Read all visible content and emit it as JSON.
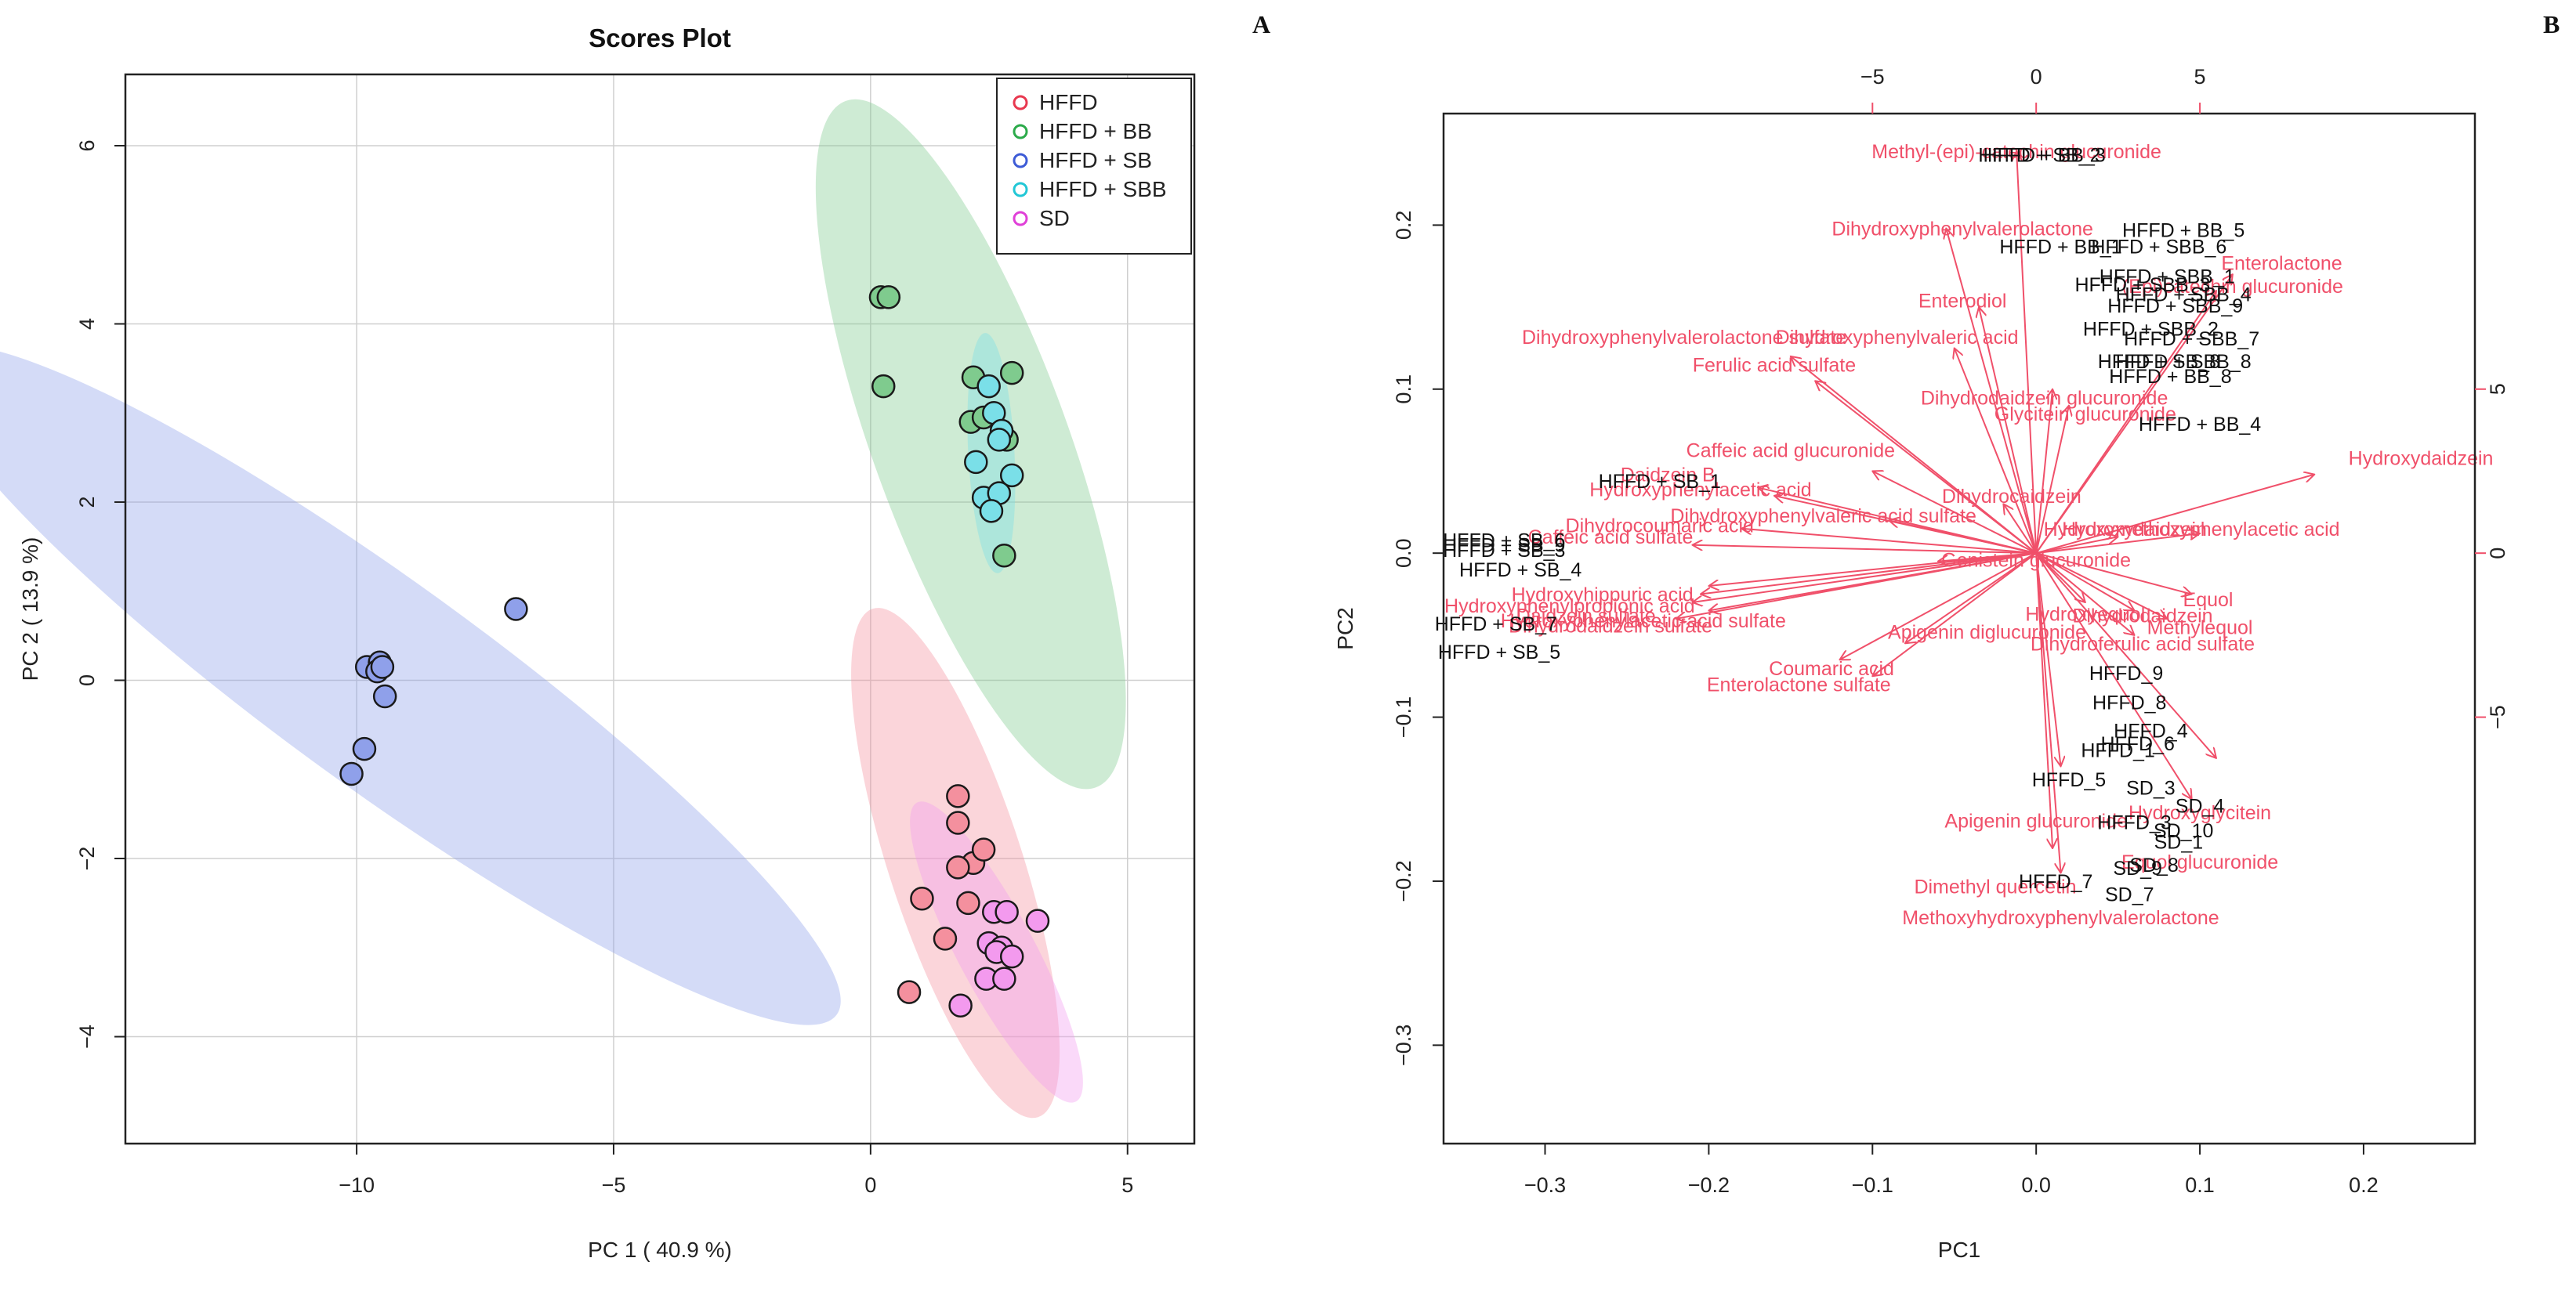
{
  "chart_data": [
    {
      "panel": "A",
      "type": "scatter",
      "title": "Scores Plot",
      "xlabel": "PC 1 ( 40.9 %)",
      "ylabel": "PC 2 ( 13.9 %)",
      "xlim": [
        -14.5,
        6.3
      ],
      "ylim": [
        -5.2,
        6.8
      ],
      "xticks": [
        -10,
        -5,
        0,
        5
      ],
      "yticks": [
        -4,
        -2,
        0,
        2,
        4,
        6
      ],
      "grid": true,
      "legend_position": "top-right",
      "series": [
        {
          "name": "HFFD",
          "color": "#E8384F",
          "fill": "#F4909E",
          "ellipse": {
            "cx": 1.65,
            "cy": -2.05,
            "rx": 1.3,
            "ry": 3.0,
            "angle_deg": 18
          },
          "points": [
            [
              1.7,
              -1.3
            ],
            [
              1.7,
              -1.6
            ],
            [
              2.0,
              -2.05
            ],
            [
              2.2,
              -1.9
            ],
            [
              1.7,
              -2.1
            ],
            [
              1.0,
              -2.45
            ],
            [
              1.9,
              -2.5
            ],
            [
              1.45,
              -2.9
            ],
            [
              0.75,
              -3.5
            ]
          ]
        },
        {
          "name": "HFFD + BB",
          "color": "#2BAA4A",
          "fill": "#7FCB8E",
          "ellipse": {
            "cx": 1.95,
            "cy": 2.65,
            "rx": 1.9,
            "ry": 4.1,
            "angle_deg": 20
          },
          "points": [
            [
              0.2,
              4.3
            ],
            [
              0.35,
              4.3
            ],
            [
              0.25,
              3.3
            ],
            [
              2.0,
              3.4
            ],
            [
              2.75,
              3.45
            ],
            [
              1.95,
              2.9
            ],
            [
              2.2,
              2.95
            ],
            [
              2.65,
              2.7
            ],
            [
              2.6,
              1.4
            ]
          ]
        },
        {
          "name": "HFFD + SB",
          "color": "#3D5BD6",
          "fill": "#8FA0EA",
          "ellipse": {
            "cx": -9.5,
            "cy": -0.05,
            "rx": 2.0,
            "ry": 6.3,
            "angle_deg": 54
          },
          "points": [
            [
              -6.9,
              0.8
            ],
            [
              -9.8,
              0.15
            ],
            [
              -9.55,
              0.2
            ],
            [
              -9.6,
              0.1
            ],
            [
              -9.5,
              0.15
            ],
            [
              -9.45,
              -0.18
            ],
            [
              -9.85,
              -0.77
            ],
            [
              -10.1,
              -1.05
            ]
          ]
        },
        {
          "name": "HFFD + SBB",
          "color": "#22C7D6",
          "fill": "#7ADFE8",
          "ellipse": {
            "cx": 2.35,
            "cy": 2.55,
            "rx": 0.45,
            "ry": 1.35,
            "angle_deg": 3
          },
          "points": [
            [
              2.3,
              3.3
            ],
            [
              2.4,
              3.0
            ],
            [
              2.55,
              2.8
            ],
            [
              2.5,
              2.7
            ],
            [
              2.05,
              2.45
            ],
            [
              2.75,
              2.3
            ],
            [
              2.2,
              2.05
            ],
            [
              2.5,
              2.1
            ],
            [
              2.35,
              1.9
            ]
          ]
        },
        {
          "name": "SD",
          "color": "#E040D8",
          "fill": "#F39AEE",
          "ellipse": {
            "cx": 2.45,
            "cy": -3.05,
            "rx": 0.75,
            "ry": 1.9,
            "angle_deg": 28
          },
          "points": [
            [
              2.4,
              -2.6
            ],
            [
              2.65,
              -2.6
            ],
            [
              3.25,
              -2.7
            ],
            [
              2.3,
              -2.95
            ],
            [
              2.55,
              -3.0
            ],
            [
              2.45,
              -3.05
            ],
            [
              2.75,
              -3.1
            ],
            [
              2.25,
              -3.35
            ],
            [
              2.6,
              -3.35
            ],
            [
              1.75,
              -3.65
            ]
          ]
        }
      ]
    },
    {
      "panel": "B",
      "type": "scatter",
      "title": "",
      "xlabel": "PC1",
      "ylabel": "PC2",
      "xlim": [
        -0.362,
        0.268
      ],
      "ylim": [
        -0.36,
        0.268
      ],
      "xticks": [
        -0.3,
        -0.2,
        -0.1,
        0.0,
        0.1,
        0.2
      ],
      "yticks": [
        -0.3,
        -0.2,
        -0.1,
        0.0,
        0.1,
        0.2
      ],
      "top_ticks": [
        -5,
        0,
        5
      ],
      "top_scale": 0.02,
      "right_ticks": [
        5,
        0,
        -5
      ],
      "grid": false,
      "arrow_color": "#F0506A",
      "sample_label_color": "#111111",
      "samples": [
        {
          "label": "HFFD + BB_3",
          "x": 0.005,
          "y": 0.243
        },
        {
          "label": "HFFD + SB_2",
          "x": 0.002,
          "y": 0.243
        },
        {
          "label": "HFFD + BB_5",
          "x": 0.09,
          "y": 0.197
        },
        {
          "label": "HFFD + BB_1",
          "x": 0.015,
          "y": 0.187
        },
        {
          "label": "HFFD + SBB_6",
          "x": 0.075,
          "y": 0.187
        },
        {
          "label": "HFFD + SBB_1",
          "x": 0.08,
          "y": 0.169
        },
        {
          "label": "HFFD + SBB_3",
          "x": 0.065,
          "y": 0.164
        },
        {
          "label": "HFFD + SBB_4",
          "x": 0.09,
          "y": 0.158
        },
        {
          "label": "HFFD + SBB_9",
          "x": 0.085,
          "y": 0.151
        },
        {
          "label": "HFFD + SBB_2",
          "x": 0.07,
          "y": 0.137
        },
        {
          "label": "HFFD + SBB_7",
          "x": 0.095,
          "y": 0.131
        },
        {
          "label": "HFFD + SBB_8",
          "x": 0.09,
          "y": 0.117
        },
        {
          "label": "HFFD + SB_8",
          "x": 0.075,
          "y": 0.117
        },
        {
          "label": "HFFD + BB_8",
          "x": 0.082,
          "y": 0.108
        },
        {
          "label": "HFFD + BB_4",
          "x": 0.1,
          "y": 0.079
        },
        {
          "label": "HFFD + SB_1",
          "x": -0.23,
          "y": 0.044
        },
        {
          "label": "HFFD + SB_6",
          "x": -0.325,
          "y": 0.008
        },
        {
          "label": "HFFD + SB_9",
          "x": -0.325,
          "y": 0.005
        },
        {
          "label": "HFFD + SB_3",
          "x": -0.325,
          "y": 0.002
        },
        {
          "label": "HFFD + SB_4",
          "x": -0.315,
          "y": -0.01
        },
        {
          "label": "HFFD + SB_7",
          "x": -0.33,
          "y": -0.043
        },
        {
          "label": "HFFD + SB_5",
          "x": -0.328,
          "y": -0.06
        },
        {
          "label": "HFFD_9",
          "x": 0.055,
          "y": -0.073
        },
        {
          "label": "HFFD_8",
          "x": 0.057,
          "y": -0.091
        },
        {
          "label": "HFFD_4",
          "x": 0.07,
          "y": -0.108
        },
        {
          "label": "HFFD_1",
          "x": 0.05,
          "y": -0.12
        },
        {
          "label": "HFFD_6",
          "x": 0.062,
          "y": -0.116
        },
        {
          "label": "HFFD_5",
          "x": 0.02,
          "y": -0.138
        },
        {
          "label": "SD_3",
          "x": 0.07,
          "y": -0.143
        },
        {
          "label": "SD_4",
          "x": 0.1,
          "y": -0.154
        },
        {
          "label": "HFFD_3",
          "x": 0.06,
          "y": -0.164
        },
        {
          "label": "SD_10",
          "x": 0.09,
          "y": -0.169
        },
        {
          "label": "SD_1",
          "x": 0.087,
          "y": -0.176
        },
        {
          "label": "SD_9",
          "x": 0.062,
          "y": -0.192
        },
        {
          "label": "SD_8",
          "x": 0.072,
          "y": -0.19
        },
        {
          "label": "HFFD_7",
          "x": 0.012,
          "y": -0.2
        },
        {
          "label": "SD_7",
          "x": 0.057,
          "y": -0.208
        }
      ],
      "loadings": [
        {
          "label": "Methyl-(epi)-catechin glucuronide",
          "x": -0.012,
          "y": 0.245,
          "ax": -0.012,
          "ay": 0.245
        },
        {
          "label": "Dihydroxyphenylvalerolactone",
          "x": -0.045,
          "y": 0.198,
          "ax": -0.055,
          "ay": 0.198
        },
        {
          "label": "Enterolactone",
          "x": 0.15,
          "y": 0.177,
          "ax": 0.12,
          "ay": 0.17
        },
        {
          "label": "(Epi)catechin glucuronide",
          "x": 0.12,
          "y": 0.163,
          "ax": 0.11,
          "ay": 0.16
        },
        {
          "label": "Enterodiol",
          "x": -0.045,
          "y": 0.154,
          "ax": -0.035,
          "ay": 0.15
        },
        {
          "label": "Dihydroxyphenylvalerolactone sulfate",
          "x": -0.215,
          "y": 0.132,
          "ax": -0.15,
          "ay": 0.12
        },
        {
          "label": "Dihydroxyphenylvaleric acid",
          "x": -0.085,
          "y": 0.132,
          "ax": -0.05,
          "ay": 0.125
        },
        {
          "label": "Ferulic acid sulfate",
          "x": -0.16,
          "y": 0.115,
          "ax": -0.135,
          "ay": 0.105
        },
        {
          "label": "Dihydrodaidzein glucuronide",
          "x": 0.005,
          "y": 0.095,
          "ax": 0.01,
          "ay": 0.1
        },
        {
          "label": "Glycitein glucuronide",
          "x": 0.03,
          "y": 0.085,
          "ax": 0.02,
          "ay": 0.09
        },
        {
          "label": "Hydroxydaidzein",
          "x": 0.235,
          "y": 0.058,
          "ax": 0.17,
          "ay": 0.048
        },
        {
          "label": "Caffeic acid glucuronide",
          "x": -0.15,
          "y": 0.063,
          "ax": -0.1,
          "ay": 0.05
        },
        {
          "label": "Daidzein B",
          "x": -0.225,
          "y": 0.048,
          "ax": -0.17,
          "ay": 0.04
        },
        {
          "label": "Hydroxyphenylacetic acid",
          "x": -0.205,
          "y": 0.039,
          "ax": -0.16,
          "ay": 0.035
        },
        {
          "label": "Dihydrocaidzein",
          "x": -0.015,
          "y": 0.035,
          "ax": -0.02,
          "ay": 0.03
        },
        {
          "label": "Dihydroxyphenylvaleric acid sulfate",
          "x": -0.13,
          "y": 0.023,
          "ax": -0.09,
          "ay": 0.02
        },
        {
          "label": "Dihydrocoumaric acid",
          "x": -0.23,
          "y": 0.017,
          "ax": -0.18,
          "ay": 0.015
        },
        {
          "label": "Hydroxymethoxyphenylacetic acid",
          "x": 0.095,
          "y": 0.015,
          "ax": 0.1,
          "ay": 0.012
        },
        {
          "label": "Hydroxydaidzein",
          "x": 0.06,
          "y": 0.015,
          "ax": 0.05,
          "ay": 0.01
        },
        {
          "label": "Caffeic acid sulfate",
          "x": -0.26,
          "y": 0.01,
          "ax": -0.21,
          "ay": 0.005
        },
        {
          "label": "Genistein glucuronide",
          "x": 0.0,
          "y": -0.004,
          "ax": -0.06,
          "ay": -0.005
        },
        {
          "label": "Hydroxyhippuric acid",
          "x": -0.265,
          "y": -0.025,
          "ax": -0.2,
          "ay": -0.02
        },
        {
          "label": "Hydroxyphenylpropionic acid",
          "x": -0.285,
          "y": -0.032,
          "ax": -0.205,
          "ay": -0.025
        },
        {
          "label": "Daidzein sulfate",
          "x": -0.275,
          "y": -0.038,
          "ax": -0.21,
          "ay": -0.03
        },
        {
          "label": "Hydroxyphenylacetic acid sulfate",
          "x": -0.24,
          "y": -0.041,
          "ax": -0.2,
          "ay": -0.035
        },
        {
          "label": "Dihydrodaidzein sulfate",
          "x": -0.26,
          "y": -0.044,
          "ax": -0.22,
          "ay": -0.04
        },
        {
          "label": "Equol",
          "x": 0.105,
          "y": -0.028,
          "ax": 0.095,
          "ay": -0.025
        },
        {
          "label": "Hydroxyequol",
          "x": 0.03,
          "y": -0.037,
          "ax": 0.03,
          "ay": -0.03
        },
        {
          "label": "Dihydrodaidzein",
          "x": 0.065,
          "y": -0.038,
          "ax": 0.06,
          "ay": -0.035
        },
        {
          "label": "Methylequol",
          "x": 0.1,
          "y": -0.045,
          "ax": 0.08,
          "ay": -0.04
        },
        {
          "label": "Apigenin diglucuronide",
          "x": -0.03,
          "y": -0.048,
          "ax": -0.08,
          "ay": -0.055
        },
        {
          "label": "Dihydroferulic acid sulfate",
          "x": 0.065,
          "y": -0.055,
          "ax": 0.06,
          "ay": -0.05
        },
        {
          "label": "Coumaric acid",
          "x": -0.125,
          "y": -0.07,
          "ax": -0.12,
          "ay": -0.065
        },
        {
          "label": "Enterolactone sulfate",
          "x": -0.145,
          "y": -0.08,
          "ax": -0.1,
          "ay": -0.075
        },
        {
          "label": "Hydroxyglycitein",
          "x": 0.1,
          "y": -0.158,
          "ax": 0.11,
          "ay": -0.125
        },
        {
          "label": "Apigenin glucuronide",
          "x": 0.0,
          "y": -0.163,
          "ax": 0.015,
          "ay": -0.13
        },
        {
          "label": "Equol glucuronide",
          "x": 0.1,
          "y": -0.188,
          "ax": 0.095,
          "ay": -0.15
        },
        {
          "label": "Dimethyl quercetin",
          "x": -0.025,
          "y": -0.203,
          "ax": 0.01,
          "ay": -0.18
        },
        {
          "label": "Methoxyhydroxyphenylvalerolactone",
          "x": 0.015,
          "y": -0.222,
          "ax": 0.015,
          "ay": -0.195
        }
      ]
    }
  ]
}
